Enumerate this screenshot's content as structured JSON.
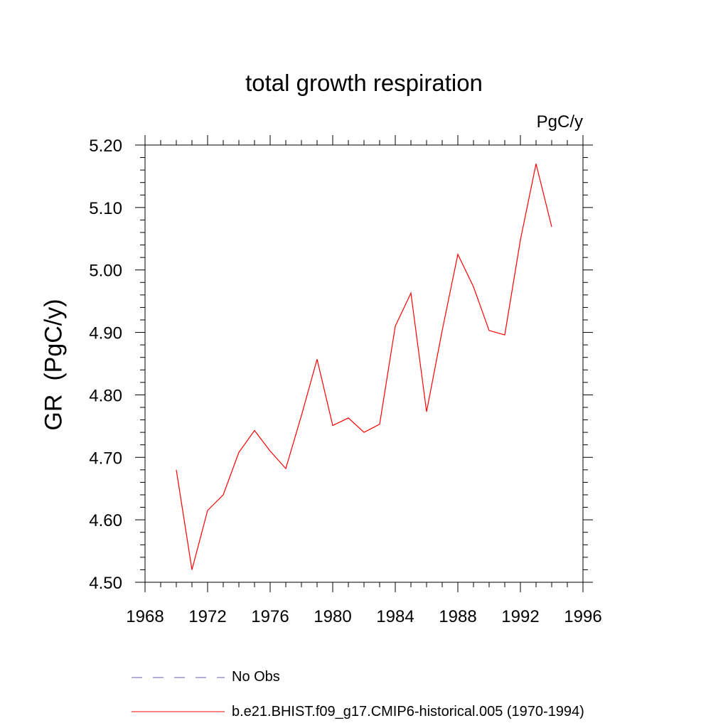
{
  "chart_data": {
    "type": "line",
    "title": "total growth respiration",
    "units_label": "PgC/y",
    "ylabel": "GR  (PgC/y)",
    "xlabel": "",
    "xlim": [
      1968,
      1996
    ],
    "ylim": [
      4.5,
      5.2
    ],
    "x_ticks": [
      1968,
      1972,
      1976,
      1980,
      1984,
      1988,
      1992,
      1996
    ],
    "y_ticks": [
      "4.50",
      "4.60",
      "4.70",
      "4.80",
      "4.90",
      "5.00",
      "5.10",
      "5.20"
    ],
    "series": [
      {
        "name": "b.e21.BHIST.f09_g17.CMIP6-historical.005 (1970-1994)",
        "color": "#ff0000",
        "style": "solid",
        "x": [
          1970,
          1971,
          1972,
          1973,
          1974,
          1975,
          1976,
          1977,
          1978,
          1979,
          1980,
          1981,
          1982,
          1983,
          1984,
          1985,
          1986,
          1987,
          1988,
          1989,
          1990,
          1991,
          1992,
          1993,
          1994
        ],
        "values": [
          4.68,
          4.52,
          4.615,
          4.64,
          4.708,
          4.743,
          4.71,
          4.682,
          4.767,
          4.857,
          4.751,
          4.763,
          4.74,
          4.753,
          4.91,
          4.963,
          4.773,
          4.903,
          5.025,
          4.973,
          4.903,
          4.896,
          5.048,
          5.17,
          5.069
        ]
      }
    ],
    "legend": [
      {
        "label": "No Obs",
        "color": "#6b5fb0",
        "style": "dashed"
      },
      {
        "label": "b.e21.BHIST.f09_g17.CMIP6-historical.005 (1970-1994)",
        "color": "#ff0000",
        "style": "solid"
      }
    ]
  }
}
